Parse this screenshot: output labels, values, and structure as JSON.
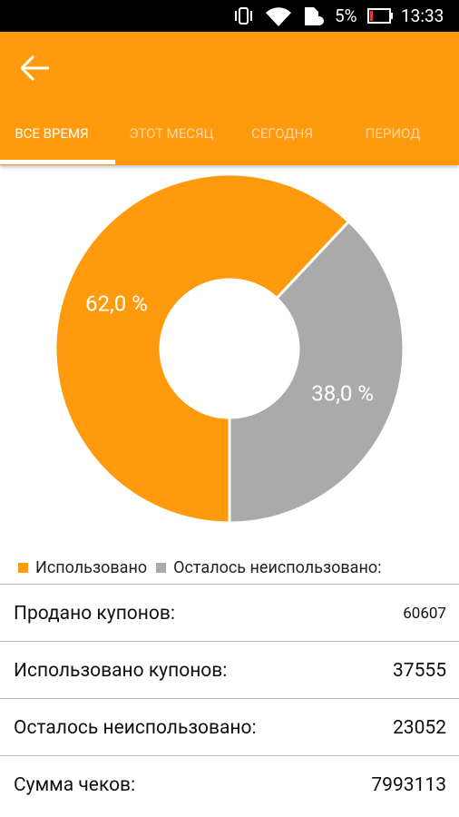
{
  "status_bar": {
    "battery": "5%",
    "time": "13:33"
  },
  "tabs": [
    "ВСЕ ВРЕМЯ",
    "ЭТОТ МЕСЯЦ",
    "СЕГОДНЯ",
    "ПЕРИОД"
  ],
  "chart_data": {
    "type": "pie",
    "categories": [
      "Использовано",
      "Осталось неиспользовано:"
    ],
    "values": [
      62.0,
      38.0
    ],
    "value_labels": [
      "62,0 %",
      "38,0 %"
    ],
    "colors": [
      "#fe9a0b",
      "#aaaaaa"
    ],
    "donut": true
  },
  "stats": [
    {
      "label": "Продано купонов:",
      "value": "60607"
    },
    {
      "label": "Использовано купонов:",
      "value": "37555"
    },
    {
      "label": "Осталось неиспользовано:",
      "value": "23052"
    },
    {
      "label": "Сумма чеков:",
      "value": "7993113"
    }
  ]
}
